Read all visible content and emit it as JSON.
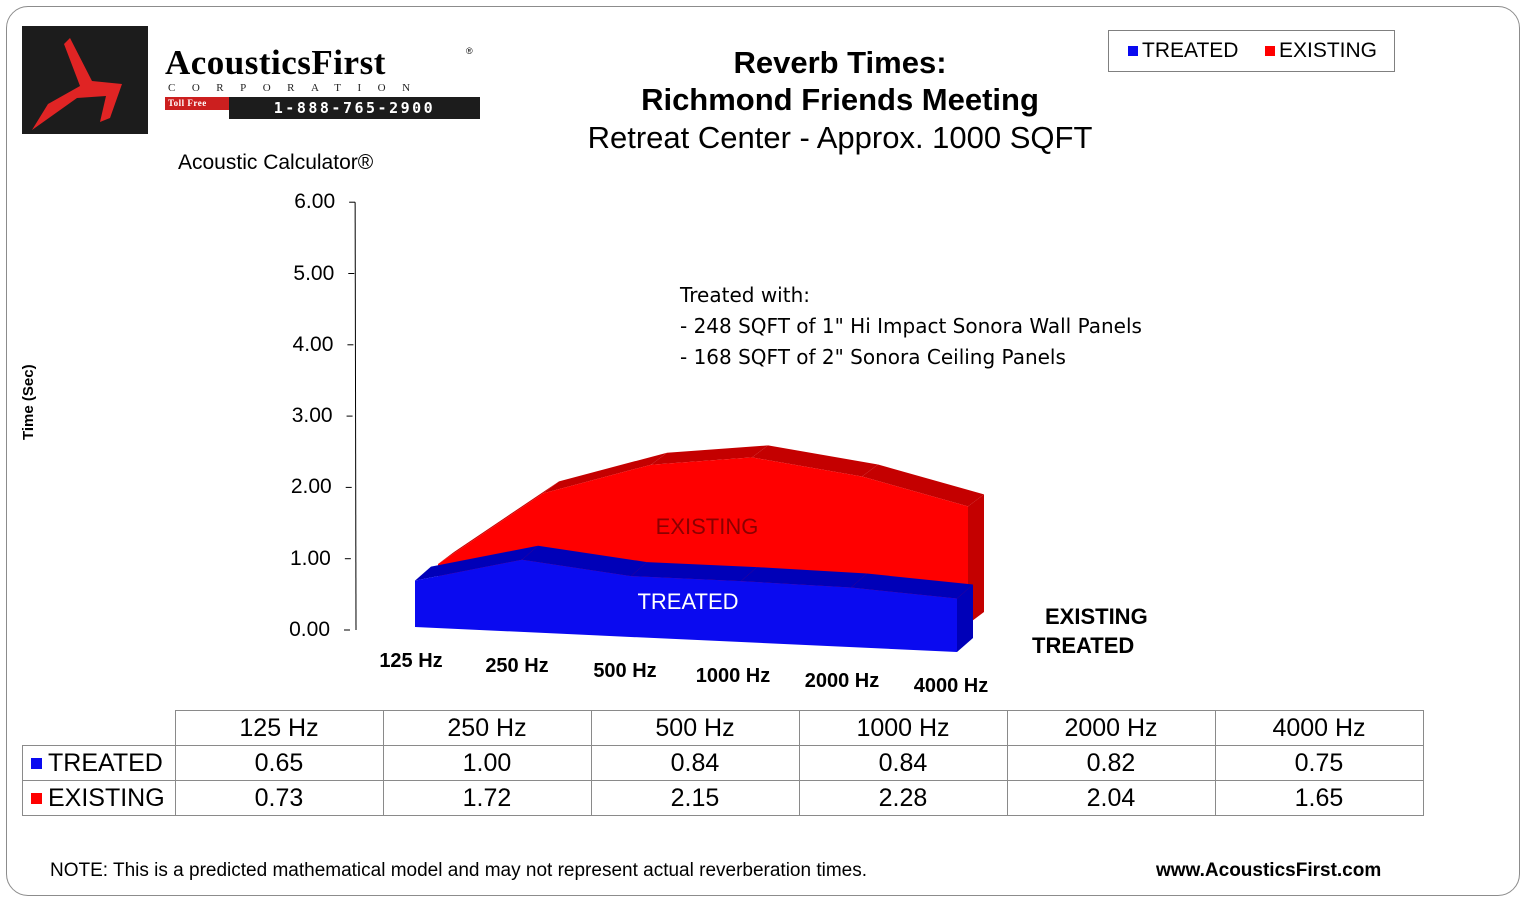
{
  "logo": {
    "name": "AcousticsFirst",
    "registered": "®",
    "corporation": "CORPORATION",
    "toll_free": "Toll Free",
    "phone": "1-888-765-2900"
  },
  "title": {
    "line1": "Reverb Times:",
    "line2": "Richmond Friends Meeting",
    "line3": "Retreat Center - Approx. 1000 SQFT"
  },
  "calculator_label": "Acoustic Calculator®",
  "legend": {
    "treated": "TREATED",
    "existing": "EXISTING"
  },
  "note": {
    "line1": "Treated with:",
    "line2": "- 248 SQFT of 1\" Hi Impact Sonora Wall Panels",
    "line3": "- 168 SQFT of 2\" Sonora Ceiling Panels"
  },
  "depth_axis": {
    "existing": "EXISTING",
    "treated": "TREATED"
  },
  "colors": {
    "treated": "#0a0af0",
    "treated_top": "#0000b8",
    "existing": "#ff0000",
    "existing_top": "#c40000"
  },
  "chart_data": {
    "type": "area",
    "title": "Reverb Times: Richmond Friends Meeting Retreat Center - Approx. 1000 SQFT",
    "ylabel": "Time (Sec)",
    "xlabel": "",
    "ylim": [
      0,
      6
    ],
    "yticks": [
      "0.00",
      "1.00",
      "2.00",
      "3.00",
      "4.00",
      "5.00",
      "6.00"
    ],
    "categories": [
      "125 Hz",
      "250 Hz",
      "500 Hz",
      "1000 Hz",
      "2000 Hz",
      "4000 Hz"
    ],
    "series": [
      {
        "name": "TREATED",
        "values": [
          0.65,
          1.0,
          0.84,
          0.84,
          0.82,
          0.75
        ]
      },
      {
        "name": "EXISTING",
        "values": [
          0.73,
          1.72,
          2.15,
          2.28,
          2.04,
          1.65
        ]
      }
    ],
    "legend_position": "top-right"
  },
  "table": {
    "headers": [
      "125 Hz",
      "250 Hz",
      "500 Hz",
      "1000 Hz",
      "2000 Hz",
      "4000 Hz"
    ],
    "rows": [
      {
        "label": "TREATED",
        "values": [
          "0.65",
          "1.00",
          "0.84",
          "0.84",
          "0.82",
          "0.75"
        ]
      },
      {
        "label": "EXISTING",
        "values": [
          "0.73",
          "1.72",
          "2.15",
          "2.28",
          "2.04",
          "1.65"
        ]
      }
    ]
  },
  "footnote": "NOTE:  This is a predicted mathematical model and may not represent actual reverberation times.",
  "website": "www.AcousticsFirst.com"
}
